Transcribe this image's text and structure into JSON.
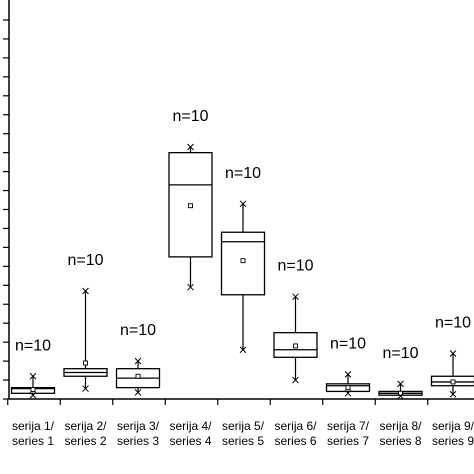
{
  "chart_data": {
    "type": "boxplot",
    "title": "",
    "xlabel": "",
    "ylabel": "",
    "grid": false,
    "legend": "none",
    "categories": [
      [
        "serija 1/",
        "series 1"
      ],
      [
        "serija 2/",
        "series 2"
      ],
      [
        "serija 3/",
        "series 3"
      ],
      [
        "serija 4/",
        "series 4"
      ],
      [
        "serija 5/",
        "series 5"
      ],
      [
        "serija 6/",
        "series 6"
      ],
      [
        "serija 7/",
        "series 7"
      ],
      [
        "serija 8/",
        "series 8"
      ],
      [
        "serija 9/",
        "series 9"
      ]
    ],
    "n_labels": [
      "n=10",
      "n=10",
      "n=10",
      "n=10",
      "n=10",
      "n=10",
      "n=10",
      "n=10",
      "n=10"
    ],
    "boxes": [
      {
        "min": 0.2,
        "q1": 0.3,
        "median": 0.55,
        "q3": 0.6,
        "max": 1.2,
        "mean": 0.5
      },
      {
        "min": 0.55,
        "q1": 1.2,
        "median": 1.4,
        "q3": 1.6,
        "max": 5.7,
        "mean": 1.9
      },
      {
        "min": 0.35,
        "q1": 0.6,
        "median": 1.1,
        "q3": 1.6,
        "max": 2.0,
        "mean": 1.2
      },
      {
        "min": 5.9,
        "q1": 7.5,
        "median": 11.3,
        "q3": 13.0,
        "max": 13.3,
        "mean": 10.2
      },
      {
        "min": 2.6,
        "q1": 5.5,
        "median": 8.3,
        "q3": 8.8,
        "max": 10.3,
        "mean": 7.3
      },
      {
        "min": 1.0,
        "q1": 2.2,
        "median": 2.6,
        "q3": 3.5,
        "max": 5.4,
        "mean": 2.8
      },
      {
        "min": 0.3,
        "q1": 0.4,
        "median": 0.7,
        "q3": 0.8,
        "max": 1.3,
        "mean": 0.6
      },
      {
        "min": 0.15,
        "q1": 0.2,
        "median": 0.3,
        "q3": 0.4,
        "max": 0.8,
        "mean": 0.3
      },
      {
        "min": 0.25,
        "q1": 0.7,
        "median": 0.9,
        "q3": 1.2,
        "max": 2.4,
        "mean": 0.9
      }
    ],
    "ylim": [
      0,
      20
    ],
    "y_tick_step": 1,
    "y_tick_labels_visible": false
  }
}
